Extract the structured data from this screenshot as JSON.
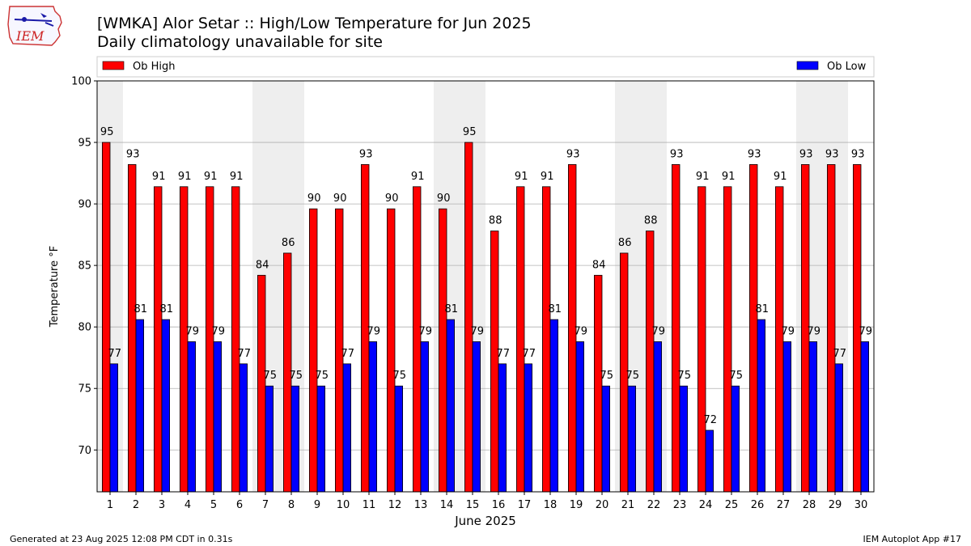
{
  "header": {
    "title": "[WMKA] Alor Setar :: High/Low Temperature for Jun 2025",
    "subtitle": "Daily climatology unavailable for site",
    "logo_text": "IEM"
  },
  "footer": {
    "generated": "Generated at 23 Aug 2025 12:08 PM CDT in 0.31s",
    "app": "IEM Autoplot App #17"
  },
  "colors": {
    "high": "#ff0000",
    "low": "#0000ff",
    "weekend_band": "#eeeeee",
    "grid": "#b0b0b0"
  },
  "chart_data": {
    "type": "bar",
    "xlabel": "June 2025",
    "ylabel": "Temperature °F",
    "ylim": [
      66.6,
      100
    ],
    "yticks": [
      70,
      75,
      80,
      85,
      90,
      95,
      100
    ],
    "grid": true,
    "legend": "top",
    "categories": [
      "1",
      "2",
      "3",
      "4",
      "5",
      "6",
      "7",
      "8",
      "9",
      "10",
      "11",
      "12",
      "13",
      "14",
      "15",
      "16",
      "17",
      "18",
      "19",
      "20",
      "21",
      "22",
      "23",
      "24",
      "25",
      "26",
      "27",
      "28",
      "29",
      "30"
    ],
    "series": [
      {
        "name": "Ob High",
        "color": "#ff0000",
        "values": [
          95.0,
          93.2,
          91.4,
          91.4,
          91.4,
          91.4,
          84.2,
          86.0,
          89.6,
          89.6,
          93.2,
          89.6,
          91.4,
          89.6,
          95.0,
          87.8,
          91.4,
          91.4,
          93.2,
          84.2,
          86.0,
          87.8,
          93.2,
          91.4,
          91.4,
          93.2,
          91.4,
          93.2,
          93.2,
          93.2
        ],
        "labels": [
          "95",
          "93",
          "91",
          "91",
          "91",
          "91",
          "84",
          "86",
          "90",
          "90",
          "93",
          "90",
          "91",
          "90",
          "95",
          "88",
          "91",
          "91",
          "93",
          "84",
          "86",
          "88",
          "93",
          "91",
          "91",
          "93",
          "91",
          "93",
          "93",
          "93"
        ]
      },
      {
        "name": "Ob Low",
        "color": "#0000ff",
        "values": [
          77.0,
          80.6,
          80.6,
          78.8,
          78.8,
          77.0,
          75.2,
          75.2,
          75.2,
          77.0,
          78.8,
          75.2,
          78.8,
          80.6,
          78.8,
          77.0,
          77.0,
          80.6,
          78.8,
          75.2,
          75.2,
          78.8,
          75.2,
          71.6,
          75.2,
          80.6,
          78.8,
          78.8,
          77.0,
          78.8
        ],
        "labels": [
          "77",
          "81",
          "81",
          "79",
          "79",
          "77",
          "75",
          "75",
          "75",
          "77",
          "79",
          "75",
          "79",
          "81",
          "79",
          "77",
          "77",
          "81",
          "79",
          "75",
          "75",
          "79",
          "75",
          "72",
          "75",
          "81",
          "79",
          "79",
          "77",
          "79"
        ]
      }
    ],
    "weekend_days": [
      1,
      7,
      8,
      14,
      15,
      21,
      22,
      28,
      29
    ]
  }
}
